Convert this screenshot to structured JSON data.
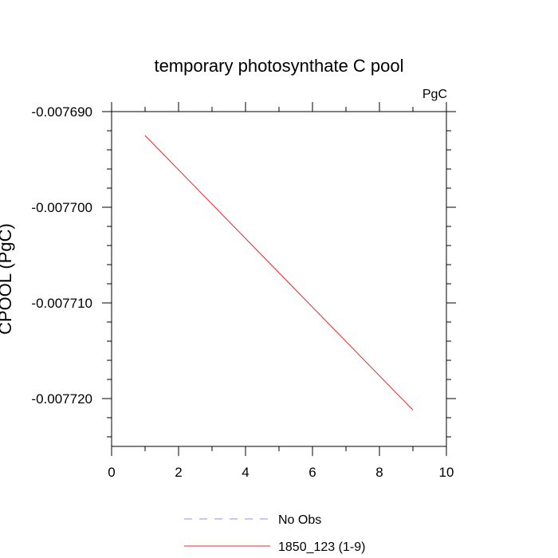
{
  "chart_data": {
    "type": "line",
    "title": "temporary photosynthate C pool",
    "units_label": "PgC",
    "ylabel": "CPOOL  (PgC)",
    "xlabel": "",
    "xlim": [
      0,
      10
    ],
    "ylim": [
      -0.007725,
      -0.00769
    ],
    "x_ticks": [
      0,
      2,
      4,
      6,
      8,
      10
    ],
    "x_tick_labels": [
      "0",
      "2",
      "4",
      "6",
      "8",
      "10"
    ],
    "y_ticks": [
      -0.00769,
      -0.0077,
      -0.00771,
      -0.00772
    ],
    "y_tick_labels": [
      "-0.007690",
      "-0.007700",
      "-0.007710",
      "-0.007720"
    ],
    "grid": false,
    "series": [
      {
        "name": "No Obs",
        "color": "#8c8cf0",
        "style": "dashed",
        "x": [],
        "y": []
      },
      {
        "name": "1850_123 (1-9)",
        "color": "#e8262a",
        "style": "solid",
        "x": [
          1,
          9
        ],
        "y": [
          -0.0076925,
          -0.0077212
        ]
      }
    ]
  }
}
